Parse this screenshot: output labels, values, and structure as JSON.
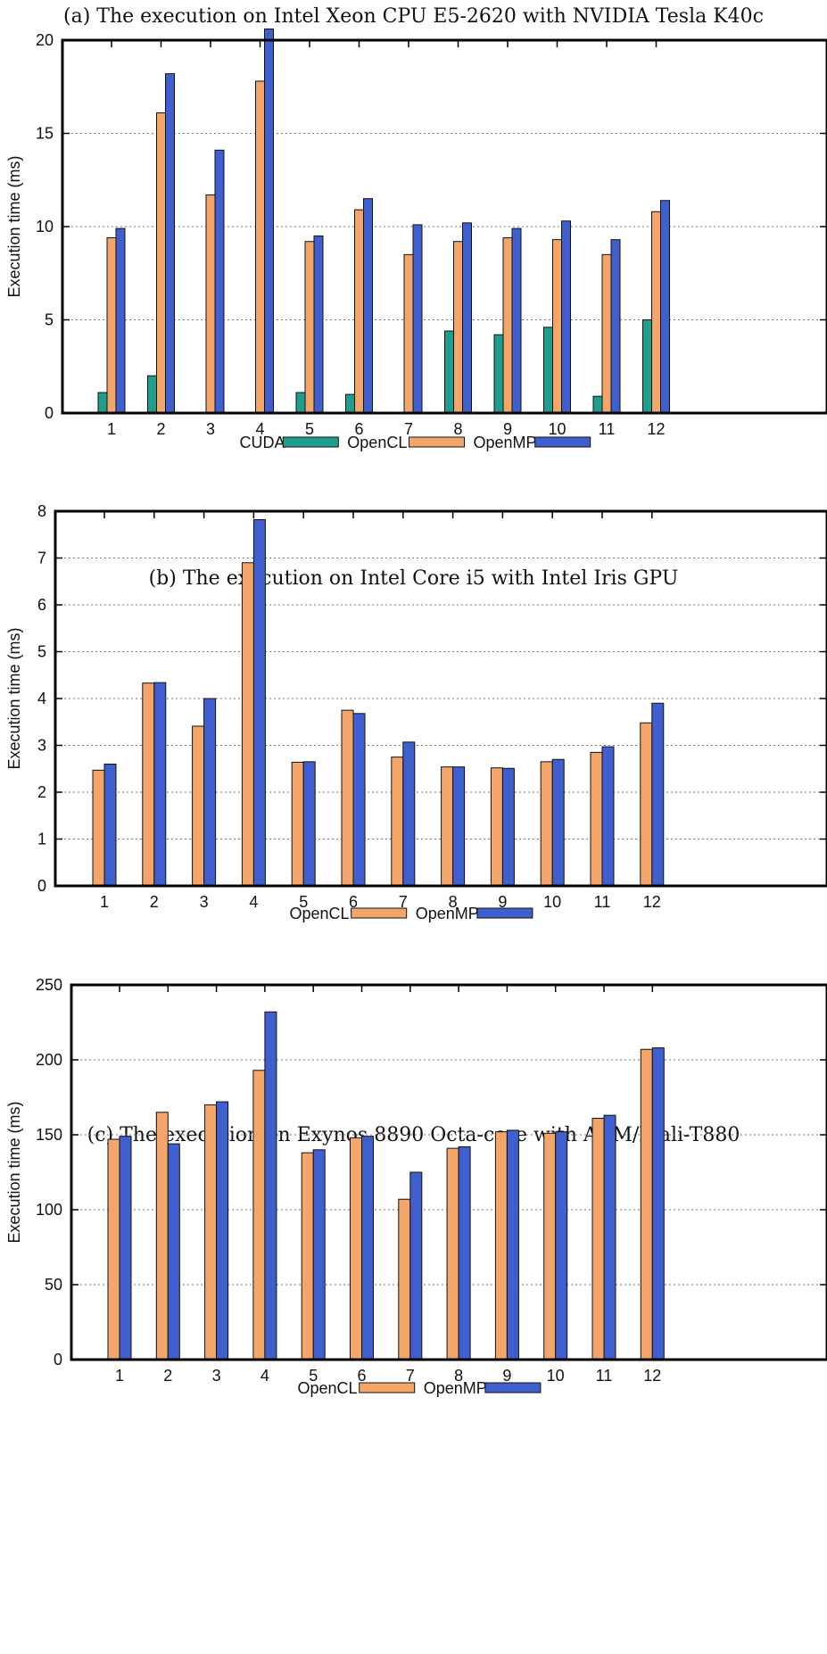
{
  "captions": {
    "a": "(a) The execution on Intel Xeon CPU E5-2620 with NVIDIA Tesla K40c",
    "b": "(b) The execution on Intel Core i5 with Intel Iris GPU",
    "c": "(c) The execution on Exynos 8890 Octa-core with ARM/Mali-T880"
  },
  "colors": {
    "CUDA": "#1f9e8e",
    "OpenCL": "#f4a66a",
    "OpenMP": "#3f5fcf",
    "edge": "#111111",
    "grid": "#777777"
  },
  "chart_data": [
    {
      "type": "bar",
      "title": "(a) The execution on Intel Xeon CPU E5-2620 with NVIDIA Tesla K40c",
      "xlabel": "",
      "ylabel": "Execution time (ms)",
      "ylim": [
        0,
        20
      ],
      "yticks": [
        0,
        5,
        10,
        15,
        20
      ],
      "grid": true,
      "legend": "bottom",
      "categories": [
        "1",
        "2",
        "3",
        "4",
        "5",
        "6",
        "7",
        "8",
        "9",
        "10",
        "11",
        "12"
      ],
      "series": [
        {
          "name": "CUDA",
          "values": [
            1.1,
            2.0,
            0,
            0,
            1.1,
            1.0,
            0,
            4.4,
            4.2,
            4.6,
            0.9,
            5.0
          ]
        },
        {
          "name": "OpenCL",
          "values": [
            9.4,
            16.1,
            11.7,
            17.8,
            9.2,
            10.9,
            8.5,
            9.2,
            9.4,
            9.3,
            8.5,
            10.8
          ]
        },
        {
          "name": "OpenMP",
          "values": [
            9.9,
            18.2,
            14.1,
            20.6,
            9.5,
            11.5,
            10.1,
            10.2,
            9.9,
            10.3,
            9.3,
            11.4
          ]
        }
      ]
    },
    {
      "type": "bar",
      "title": "(b) The execution on Intel Core i5 with Intel Iris GPU",
      "xlabel": "",
      "ylabel": "Execution time (ms)",
      "ylim": [
        0,
        8
      ],
      "yticks": [
        0,
        1,
        2,
        3,
        4,
        5,
        6,
        7,
        8
      ],
      "grid": true,
      "legend": "bottom",
      "categories": [
        "1",
        "2",
        "3",
        "4",
        "5",
        "6",
        "7",
        "8",
        "9",
        "10",
        "11",
        "12"
      ],
      "series": [
        {
          "name": "OpenCL",
          "values": [
            2.47,
            4.33,
            3.41,
            6.9,
            2.64,
            3.75,
            2.75,
            2.54,
            2.52,
            2.65,
            2.85,
            3.48
          ]
        },
        {
          "name": "OpenMP",
          "values": [
            2.6,
            4.34,
            4.0,
            7.82,
            2.65,
            3.68,
            3.07,
            2.54,
            2.51,
            2.7,
            2.97,
            3.9
          ]
        }
      ]
    },
    {
      "type": "bar",
      "title": "(c) The execution on Exynos 8890 Octa-core with ARM/Mali-T880",
      "xlabel": "",
      "ylabel": "Execution time (ms)",
      "ylim": [
        0,
        250
      ],
      "yticks": [
        0,
        50,
        100,
        150,
        200,
        250
      ],
      "grid": true,
      "legend": "bottom",
      "categories": [
        "1",
        "2",
        "3",
        "4",
        "5",
        "6",
        "7",
        "8",
        "9",
        "10",
        "11",
        "12"
      ],
      "series": [
        {
          "name": "OpenCL",
          "values": [
            147,
            165,
            170,
            193,
            138,
            148,
            107,
            141,
            152,
            151,
            161,
            207
          ]
        },
        {
          "name": "OpenMP",
          "values": [
            149,
            144,
            172,
            232,
            140,
            149,
            125,
            142,
            153,
            152,
            163,
            208
          ]
        }
      ]
    }
  ]
}
